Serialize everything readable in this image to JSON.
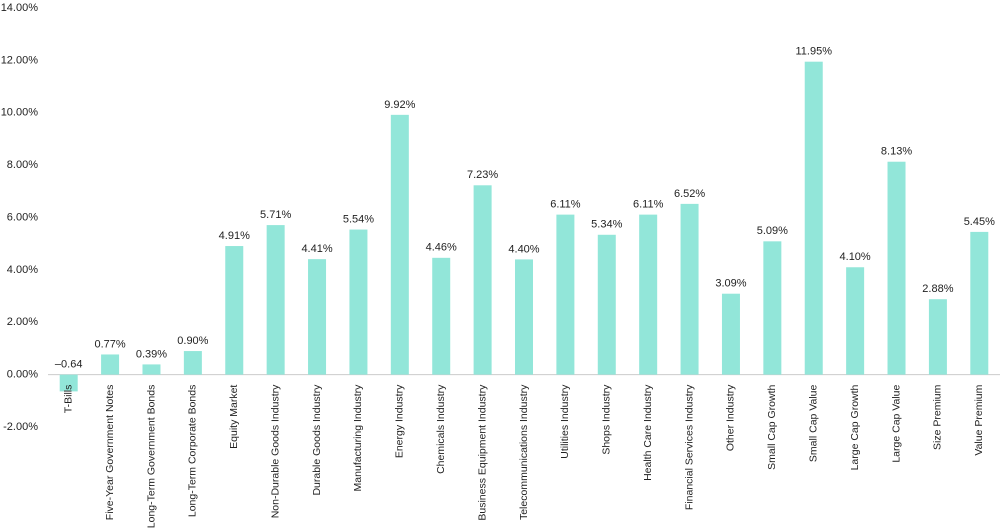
{
  "chart_data": {
    "type": "bar",
    "categories": [
      "T-Bills",
      "Five-Year Government Notes",
      "Long-Term Government Bonds",
      "Long-Term Corporate Bonds",
      "Equity Market",
      "Non-Durable Goods Industry",
      "Durable Goods Industry",
      "Manufacturing Industry",
      "Energy Industry",
      "Chemicals Industry",
      "Business Equipment Industry",
      "Telecommunications Industry",
      "Utilities Industry",
      "Shops Industry",
      "Health Care Industry",
      "Financial Services Industry",
      "Other Industry",
      "Small Cap Growth",
      "Small Cap Value",
      "Large Cap Growth",
      "Large Cap Value",
      "Size Premium",
      "Value Premium"
    ],
    "values": [
      -0.64,
      0.77,
      0.39,
      0.9,
      4.91,
      5.71,
      4.41,
      5.54,
      9.92,
      4.46,
      7.23,
      4.4,
      6.11,
      5.34,
      6.11,
      6.52,
      3.09,
      5.09,
      11.95,
      4.1,
      8.13,
      2.88,
      5.45
    ],
    "value_labels": [
      "–0.64",
      "0.77%",
      "0.39%",
      "0.90%",
      "4.91%",
      "5.71%",
      "4.41%",
      "5.54%",
      "9.92%",
      "4.46%",
      "7.23%",
      "4.40%",
      "6.11%",
      "5.34%",
      "6.11%",
      "6.52%",
      "3.09%",
      "5.09%",
      "11.95%",
      "4.10%",
      "8.13%",
      "2.88%",
      "5.45%"
    ],
    "color": "#92e6d9",
    "ylim": [
      -2,
      14
    ],
    "yticks": [
      {
        "value": -2,
        "label": "-2.00%"
      },
      {
        "value": 0,
        "label": "0.00%"
      },
      {
        "value": 2,
        "label": "2.00%"
      },
      {
        "value": 4,
        "label": "4.00%"
      },
      {
        "value": 6,
        "label": "6.00%"
      },
      {
        "value": 8,
        "label": "8.00%"
      },
      {
        "value": 10,
        "label": "10.00%"
      },
      {
        "value": 12,
        "label": "12.00%"
      },
      {
        "value": 14,
        "label": "14.00%"
      }
    ],
    "grid": false
  }
}
